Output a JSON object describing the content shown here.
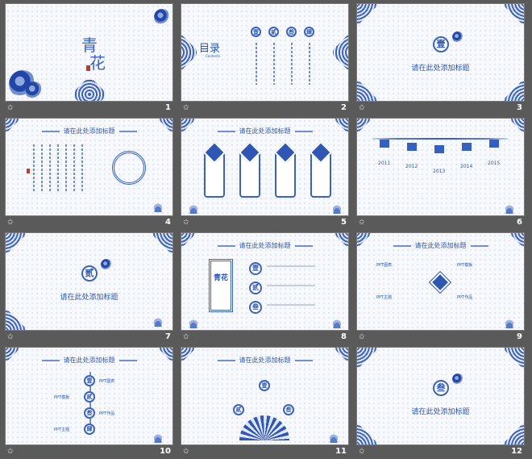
{
  "slides": [
    {
      "number": "1",
      "title_char1": "青",
      "title_char2": "花"
    },
    {
      "number": "2",
      "toc_title": "目录",
      "toc_sub": "Contents",
      "items": [
        "壹",
        "贰",
        "叁",
        "肆"
      ],
      "col_text": "请在此处添加标题"
    },
    {
      "number": "3",
      "seal": "壹",
      "heading": "请在此处添加标题"
    },
    {
      "number": "4",
      "heading": "请在此处添加标题"
    },
    {
      "number": "5",
      "heading": "请在此处添加标题"
    },
    {
      "number": "6",
      "years": [
        "2011",
        "2012",
        "2013",
        "2014",
        "2015"
      ]
    },
    {
      "number": "7",
      "seal": "贰",
      "heading": "请在此处添加标题"
    },
    {
      "number": "8",
      "heading": "请在此处添加标题",
      "emblem": "青花",
      "seals": [
        "壹",
        "贰",
        "叁"
      ]
    },
    {
      "number": "9",
      "heading": "请在此处添加标题",
      "labels": [
        "PPT图表",
        "PPT模板",
        "PPT主题",
        "PPT作品"
      ]
    },
    {
      "number": "10",
      "heading": "请在此处添加标题",
      "labels": [
        "PPT图表",
        "PPT模板",
        "PPT作品",
        "PPT主题"
      ],
      "seals": [
        "壹",
        "贰",
        "叁",
        "肆"
      ]
    },
    {
      "number": "11",
      "heading": "请在此处添加标题",
      "seals": [
        "壹",
        "贰",
        "叁"
      ]
    },
    {
      "number": "12",
      "seal": "叁",
      "heading": "请在此处添加标题"
    }
  ],
  "icons": {
    "slide_marker": "star-icon"
  },
  "colors": {
    "accent": "#2f56b5",
    "panel_bg": "#5a5a5a"
  }
}
